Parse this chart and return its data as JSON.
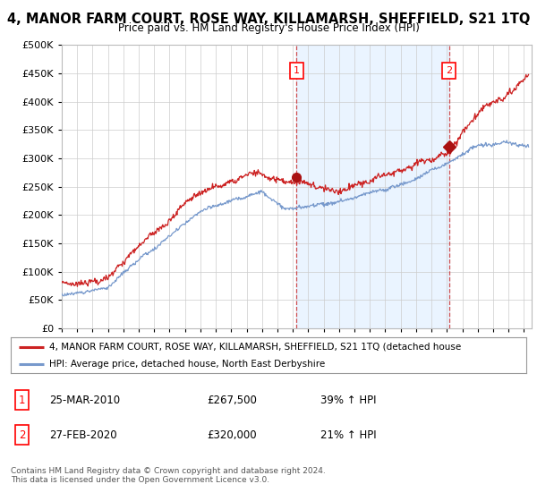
{
  "title": "4, MANOR FARM COURT, ROSE WAY, KILLAMARSH, SHEFFIELD, S21 1TQ",
  "subtitle": "Price paid vs. HM Land Registry's House Price Index (HPI)",
  "ylim": [
    0,
    500000
  ],
  "yticks": [
    0,
    50000,
    100000,
    150000,
    200000,
    250000,
    300000,
    350000,
    400000,
    450000,
    500000
  ],
  "xlim_start": 1995.0,
  "xlim_end": 2025.5,
  "marker1_year": 2010.23,
  "marker1_label": "1",
  "marker1_price": 267500,
  "marker2_year": 2020.15,
  "marker2_label": "2",
  "marker2_price": 320000,
  "red_line_color": "#cc2222",
  "blue_line_color": "#7799cc",
  "fill_color": "#ddeeff",
  "marker_dot_color": "#aa1111",
  "legend_red_label": "4, MANOR FARM COURT, ROSE WAY, KILLAMARSH, SHEFFIELD, S21 1TQ (detached house",
  "legend_blue_label": "HPI: Average price, detached house, North East Derbyshire",
  "table_row1_num": "1",
  "table_row1_date": "25-MAR-2010",
  "table_row1_price": "£267,500",
  "table_row1_hpi": "39% ↑ HPI",
  "table_row2_num": "2",
  "table_row2_date": "27-FEB-2020",
  "table_row2_price": "£320,000",
  "table_row2_hpi": "21% ↑ HPI",
  "footer_text": "Contains HM Land Registry data © Crown copyright and database right 2024.\nThis data is licensed under the Open Government Licence v3.0.",
  "bg_color": "#ffffff",
  "grid_color": "#cccccc"
}
